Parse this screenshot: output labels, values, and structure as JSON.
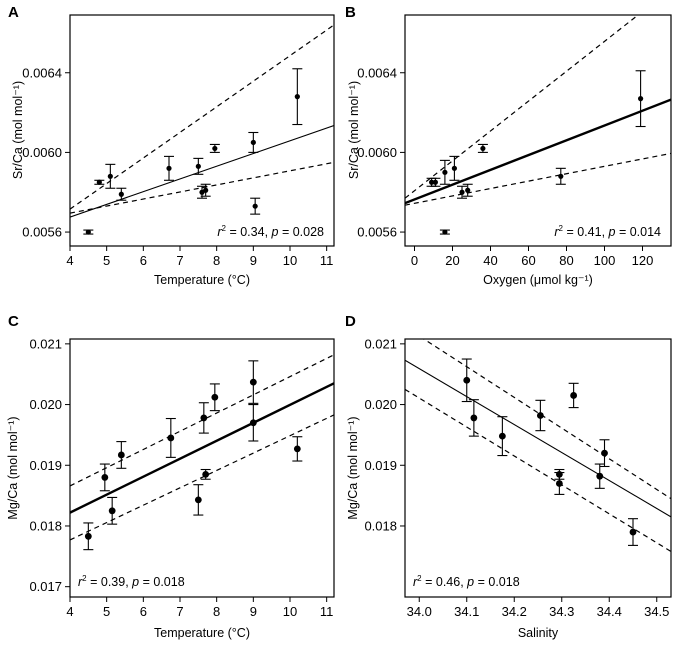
{
  "chart_data": [
    {
      "panel": "A",
      "type": "scatter",
      "xlabel": "Temperature (°C)",
      "ylabel": "Sr/Ca (mol mol⁻¹)",
      "xlim": [
        4,
        11.2
      ],
      "ylim": [
        0.00553,
        0.00669
      ],
      "xticks": [
        4,
        5,
        6,
        7,
        8,
        9,
        10,
        11
      ],
      "yticks": [
        0.0056,
        0.006,
        0.0064
      ],
      "ytick_labels": [
        "0.0056",
        "0.0060",
        "0.0064"
      ],
      "points": [
        {
          "x": 4.5,
          "y": 0.0056,
          "err": 1e-05
        },
        {
          "x": 4.8,
          "y": 0.00585,
          "err": 1e-05
        },
        {
          "x": 5.1,
          "y": 0.00588,
          "err": 6e-05
        },
        {
          "x": 5.4,
          "y": 0.00579,
          "err": 3e-05
        },
        {
          "x": 6.7,
          "y": 0.00592,
          "err": 6e-05
        },
        {
          "x": 7.5,
          "y": 0.00593,
          "err": 4e-05
        },
        {
          "x": 7.6,
          "y": 0.0058,
          "err": 3e-05
        },
        {
          "x": 7.7,
          "y": 0.00581,
          "err": 3e-05
        },
        {
          "x": 7.95,
          "y": 0.00602,
          "err": 2e-05
        },
        {
          "x": 9.0,
          "y": 0.00605,
          "err": 5e-05
        },
        {
          "x": 9.05,
          "y": 0.00573,
          "err": 4e-05
        },
        {
          "x": 10.2,
          "y": 0.00628,
          "err": 0.00014
        }
      ],
      "fit": {
        "style": "solid-thin",
        "x": [
          4,
          11.2
        ],
        "y": [
          0.005675,
          0.006135
        ]
      },
      "ci": [
        {
          "x": [
            4,
            11.2
          ],
          "y": [
            0.005715,
            0.00664
          ]
        },
        {
          "x": [
            4,
            11.2
          ],
          "y": [
            0.005695,
            0.00595
          ]
        }
      ],
      "stat_r2": "0.34",
      "stat_p": "0.028",
      "stat_position": "bottom-right"
    },
    {
      "panel": "B",
      "type": "scatter",
      "xlabel": "Oxygen (μmol kg⁻¹)",
      "ylabel": "Sr/Ca (mol mol⁻¹)",
      "xlim": [
        -5,
        135
      ],
      "ylim": [
        0.00553,
        0.00669
      ],
      "xticks": [
        0,
        20,
        40,
        60,
        80,
        100,
        120
      ],
      "yticks": [
        0.0056,
        0.006,
        0.0064
      ],
      "ytick_labels": [
        "0.0056",
        "0.0060",
        "0.0064"
      ],
      "points": [
        {
          "x": 9,
          "y": 0.00585,
          "err": 2e-05
        },
        {
          "x": 11,
          "y": 0.00585,
          "err": 2e-05
        },
        {
          "x": 16,
          "y": 0.0056,
          "err": 1e-05
        },
        {
          "x": 16,
          "y": 0.0059,
          "err": 6e-05
        },
        {
          "x": 21,
          "y": 0.00592,
          "err": 6e-05
        },
        {
          "x": 25,
          "y": 0.0058,
          "err": 3e-05
        },
        {
          "x": 28,
          "y": 0.00581,
          "err": 3e-05
        },
        {
          "x": 36,
          "y": 0.00602,
          "err": 2e-05
        },
        {
          "x": 77,
          "y": 0.00588,
          "err": 4e-05
        },
        {
          "x": 119,
          "y": 0.00627,
          "err": 0.00014
        }
      ],
      "fit": {
        "style": "solid-thick",
        "x": [
          -5,
          135
        ],
        "y": [
          0.005745,
          0.006265
        ]
      },
      "ci": [
        {
          "x": [
            -5,
            135
          ],
          "y": [
            0.00577,
            0.00682
          ]
        },
        {
          "x": [
            -5,
            135
          ],
          "y": [
            0.005735,
            0.005995
          ]
        }
      ],
      "stat_r2": "0.41",
      "stat_p": "0.014",
      "stat_position": "bottom-right"
    },
    {
      "panel": "C",
      "type": "scatter",
      "xlabel": "Temperature (°C)",
      "ylabel": "Mg/Ca (mol mol⁻¹)",
      "xlim": [
        4,
        11.2
      ],
      "ylim": [
        0.01683,
        0.02108
      ],
      "xticks": [
        4,
        5,
        6,
        7,
        8,
        9,
        10,
        11
      ],
      "yticks": [
        0.017,
        0.018,
        0.019,
        0.02,
        0.021
      ],
      "ytick_labels": [
        "0.017",
        "0.018",
        "0.019",
        "0.020",
        "0.021"
      ],
      "points": [
        {
          "x": 4.5,
          "y": 0.01783,
          "err": 0.00022
        },
        {
          "x": 4.95,
          "y": 0.0188,
          "err": 0.00022
        },
        {
          "x": 5.15,
          "y": 0.01825,
          "err": 0.00022
        },
        {
          "x": 5.4,
          "y": 0.01917,
          "err": 0.00022
        },
        {
          "x": 6.75,
          "y": 0.01945,
          "err": 0.00032
        },
        {
          "x": 7.5,
          "y": 0.01843,
          "err": 0.00025
        },
        {
          "x": 7.65,
          "y": 0.01978,
          "err": 0.00025
        },
        {
          "x": 7.7,
          "y": 0.01885,
          "err": 8e-05
        },
        {
          "x": 7.95,
          "y": 0.02012,
          "err": 0.00022
        },
        {
          "x": 9.0,
          "y": 0.02037,
          "err": 0.00035
        },
        {
          "x": 9.0,
          "y": 0.0197,
          "err": 0.0003
        },
        {
          "x": 10.2,
          "y": 0.01927,
          "err": 0.0002
        }
      ],
      "fit": {
        "style": "solid-thick",
        "x": [
          4,
          11.2
        ],
        "y": [
          0.01822,
          0.02035
        ]
      },
      "ci": [
        {
          "x": [
            4,
            11.2
          ],
          "y": [
            0.01866,
            0.02082
          ]
        },
        {
          "x": [
            4,
            11.2
          ],
          "y": [
            0.01777,
            0.01983
          ]
        }
      ],
      "stat_r2": "0.39",
      "stat_p": "0.018",
      "stat_position": "bottom-left"
    },
    {
      "panel": "D",
      "type": "scatter",
      "xlabel": "Salinity",
      "ylabel": "Mg/Ca (mol mol⁻¹)",
      "xlim": [
        33.97,
        34.53
      ],
      "ylim": [
        0.01683,
        0.02108
      ],
      "xticks": [
        34.0,
        34.1,
        34.2,
        34.3,
        34.4,
        34.5
      ],
      "xtick_labels": [
        "34.0",
        "34.1",
        "34.2",
        "34.3",
        "34.4",
        "34.5"
      ],
      "yticks": [
        0.018,
        0.019,
        0.02,
        0.021
      ],
      "ytick_labels": [
        "0.018",
        "0.019",
        "0.020",
        "0.021"
      ],
      "points": [
        {
          "x": 34.1,
          "y": 0.0204,
          "err": 0.00035
        },
        {
          "x": 34.115,
          "y": 0.01978,
          "err": 0.0003
        },
        {
          "x": 34.175,
          "y": 0.01948,
          "err": 0.00032
        },
        {
          "x": 34.255,
          "y": 0.01982,
          "err": 0.00025
        },
        {
          "x": 34.295,
          "y": 0.01885,
          "err": 8e-05
        },
        {
          "x": 34.295,
          "y": 0.0187,
          "err": 0.00018
        },
        {
          "x": 34.325,
          "y": 0.02015,
          "err": 0.0002
        },
        {
          "x": 34.38,
          "y": 0.01882,
          "err": 0.0002
        },
        {
          "x": 34.39,
          "y": 0.0192,
          "err": 0.00022
        },
        {
          "x": 34.45,
          "y": 0.0179,
          "err": 0.00022
        }
      ],
      "fit": {
        "style": "solid-thin",
        "x": [
          33.97,
          34.53
        ],
        "y": [
          0.02073,
          0.01815
        ]
      },
      "ci": [
        {
          "x": [
            33.97,
            34.53
          ],
          "y": [
            0.02128,
            0.01845
          ]
        },
        {
          "x": [
            33.97,
            34.53
          ],
          "y": [
            0.02025,
            0.01758
          ]
        }
      ],
      "stat_r2": "0.46",
      "stat_p": "0.018",
      "stat_position": "bottom-left"
    }
  ],
  "labels": {
    "r2_prefix": "r",
    "r2_sup": "2",
    "eq": " = ",
    "sep": ", ",
    "p_letter": "p"
  }
}
